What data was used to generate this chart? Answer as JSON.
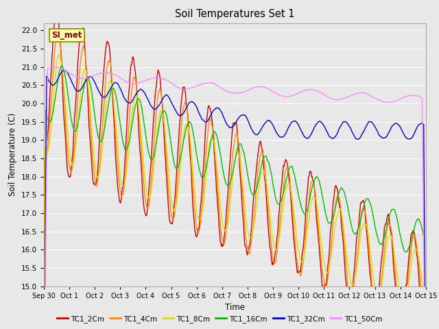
{
  "title": "Soil Temperatures Set 1",
  "xlabel": "Time",
  "ylabel": "Soil Temperature (C)",
  "ylim": [
    15.0,
    22.2
  ],
  "yticks": [
    15.0,
    15.5,
    16.0,
    16.5,
    17.0,
    17.5,
    18.0,
    18.5,
    19.0,
    19.5,
    20.0,
    20.5,
    21.0,
    21.5,
    22.0
  ],
  "xtick_labels": [
    "Sep 30",
    "Oct 1",
    "Oct 2",
    "Oct 3",
    "Oct 4",
    "Oct 5",
    "Oct 6",
    "Oct 7",
    "Oct 8",
    "Oct 9",
    "Oct 10",
    "Oct 11",
    "Oct 12",
    "Oct 13",
    "Oct 14",
    "Oct 15"
  ],
  "line_colors": [
    "#cc0000",
    "#ff8800",
    "#dddd00",
    "#00bb00",
    "#0000cc",
    "#ff88ff"
  ],
  "line_labels": [
    "TC1_2Cm",
    "TC1_4Cm",
    "TC1_8Cm",
    "TC1_16Cm",
    "TC1_32Cm",
    "TC1_50Cm"
  ],
  "legend_label": "SI_met",
  "legend_bg": "#ffffaa",
  "legend_border": "#888800",
  "bg_color": "#e8e8e8",
  "plot_bg": "#e8e8e8",
  "grid_color": "#ffffff",
  "n_points": 720
}
